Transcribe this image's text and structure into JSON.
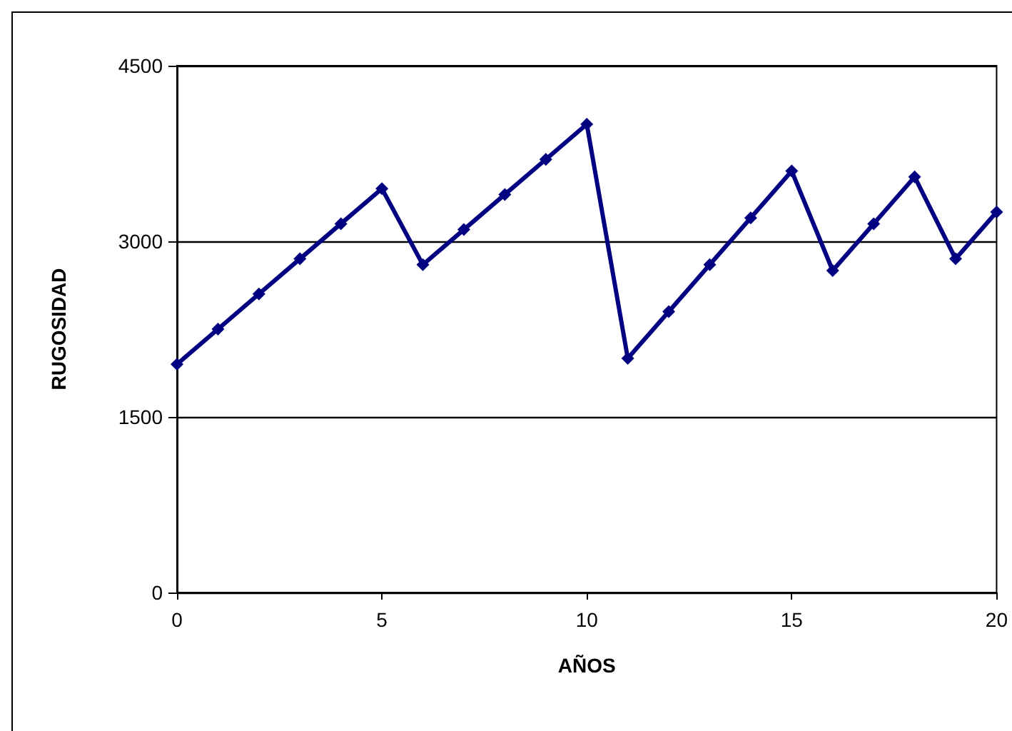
{
  "chart_data": {
    "type": "line",
    "xlabel": "AÑOS",
    "ylabel": "RUGOSIDAD",
    "x": [
      0,
      1,
      2,
      3,
      4,
      5,
      6,
      7,
      8,
      9,
      10,
      11,
      12,
      13,
      14,
      15,
      16,
      17,
      18,
      19,
      20
    ],
    "series": [
      {
        "color": "#000080",
        "values": [
          1950,
          2250,
          2550,
          2850,
          3150,
          3450,
          2800,
          3100,
          3400,
          3700,
          4000,
          2000,
          2400,
          2800,
          3200,
          3600,
          2750,
          3150,
          3550,
          2850,
          3250
        ]
      }
    ],
    "xlim": [
      0,
      20
    ],
    "xticks": [
      0,
      5,
      10,
      15,
      20
    ],
    "ylim": [
      0,
      4500
    ],
    "yticks": [
      0,
      1500,
      3000,
      4500
    ],
    "grid": "y",
    "marker": "diamond",
    "line_style": "solid"
  }
}
